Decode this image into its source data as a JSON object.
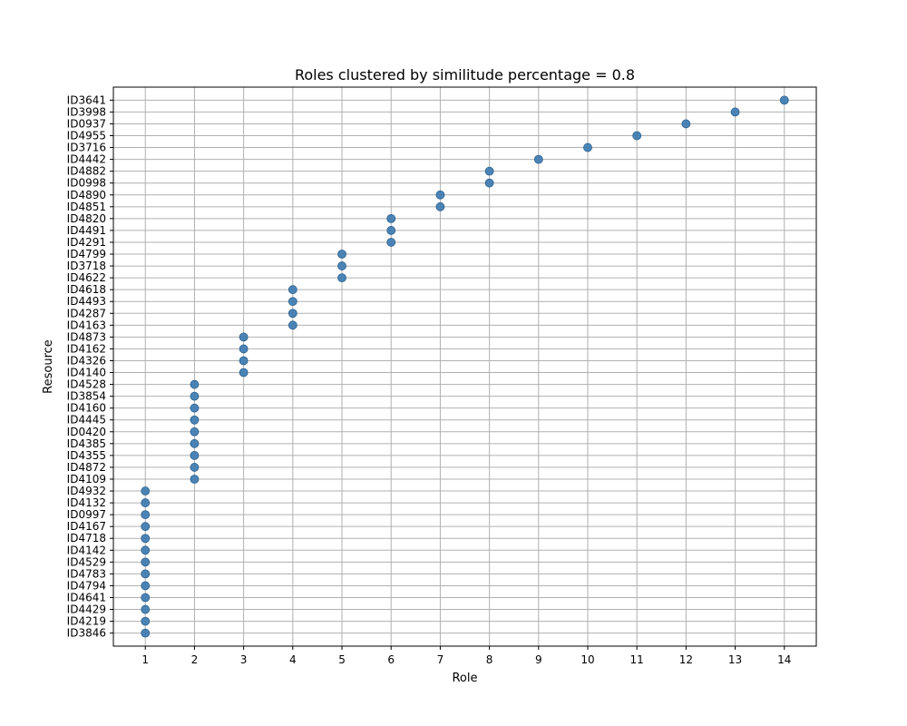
{
  "chart_data": {
    "type": "scatter",
    "title": "Roles clustered by similitude percentage = 0.8",
    "xlabel": "Role",
    "ylabel": "Resource",
    "x_ticks": [
      1,
      2,
      3,
      4,
      5,
      6,
      7,
      8,
      9,
      10,
      11,
      12,
      13,
      14
    ],
    "xlim": [
      0.35,
      14.65
    ],
    "grid": true,
    "y_categories": [
      "ID3846",
      "ID4219",
      "ID4429",
      "ID4641",
      "ID4794",
      "ID4783",
      "ID4529",
      "ID4142",
      "ID4718",
      "ID4167",
      "ID0997",
      "ID4132",
      "ID4932",
      "ID4109",
      "ID4872",
      "ID4355",
      "ID4385",
      "ID0420",
      "ID4445",
      "ID4160",
      "ID3854",
      "ID4528",
      "ID4140",
      "ID4326",
      "ID4162",
      "ID4873",
      "ID4163",
      "ID4287",
      "ID4493",
      "ID4618",
      "ID4622",
      "ID3718",
      "ID4799",
      "ID4291",
      "ID4491",
      "ID4820",
      "ID4851",
      "ID4890",
      "ID0998",
      "ID4882",
      "ID4442",
      "ID3716",
      "ID4955",
      "ID0937",
      "ID3998",
      "ID3641"
    ],
    "points": [
      {
        "x": 1,
        "y": "ID3846"
      },
      {
        "x": 1,
        "y": "ID4219"
      },
      {
        "x": 1,
        "y": "ID4429"
      },
      {
        "x": 1,
        "y": "ID4641"
      },
      {
        "x": 1,
        "y": "ID4794"
      },
      {
        "x": 1,
        "y": "ID4783"
      },
      {
        "x": 1,
        "y": "ID4529"
      },
      {
        "x": 1,
        "y": "ID4142"
      },
      {
        "x": 1,
        "y": "ID4718"
      },
      {
        "x": 1,
        "y": "ID4167"
      },
      {
        "x": 1,
        "y": "ID0997"
      },
      {
        "x": 1,
        "y": "ID4132"
      },
      {
        "x": 1,
        "y": "ID4932"
      },
      {
        "x": 2,
        "y": "ID4109"
      },
      {
        "x": 2,
        "y": "ID4872"
      },
      {
        "x": 2,
        "y": "ID4355"
      },
      {
        "x": 2,
        "y": "ID4385"
      },
      {
        "x": 2,
        "y": "ID0420"
      },
      {
        "x": 2,
        "y": "ID4445"
      },
      {
        "x": 2,
        "y": "ID4160"
      },
      {
        "x": 2,
        "y": "ID3854"
      },
      {
        "x": 2,
        "y": "ID4528"
      },
      {
        "x": 3,
        "y": "ID4140"
      },
      {
        "x": 3,
        "y": "ID4326"
      },
      {
        "x": 3,
        "y": "ID4162"
      },
      {
        "x": 3,
        "y": "ID4873"
      },
      {
        "x": 4,
        "y": "ID4163"
      },
      {
        "x": 4,
        "y": "ID4287"
      },
      {
        "x": 4,
        "y": "ID4493"
      },
      {
        "x": 4,
        "y": "ID4618"
      },
      {
        "x": 5,
        "y": "ID4622"
      },
      {
        "x": 5,
        "y": "ID3718"
      },
      {
        "x": 5,
        "y": "ID4799"
      },
      {
        "x": 6,
        "y": "ID4291"
      },
      {
        "x": 6,
        "y": "ID4491"
      },
      {
        "x": 6,
        "y": "ID4820"
      },
      {
        "x": 7,
        "y": "ID4851"
      },
      {
        "x": 7,
        "y": "ID4890"
      },
      {
        "x": 8,
        "y": "ID0998"
      },
      {
        "x": 8,
        "y": "ID4882"
      },
      {
        "x": 9,
        "y": "ID4442"
      },
      {
        "x": 10,
        "y": "ID3716"
      },
      {
        "x": 11,
        "y": "ID4955"
      },
      {
        "x": 12,
        "y": "ID0937"
      },
      {
        "x": 13,
        "y": "ID3998"
      },
      {
        "x": 14,
        "y": "ID3641"
      }
    ],
    "colors": {
      "marker": "#3a79b0",
      "marker_edge": "#2c5f8a",
      "grid": "#b0b0b0",
      "axes": "#000000"
    }
  }
}
